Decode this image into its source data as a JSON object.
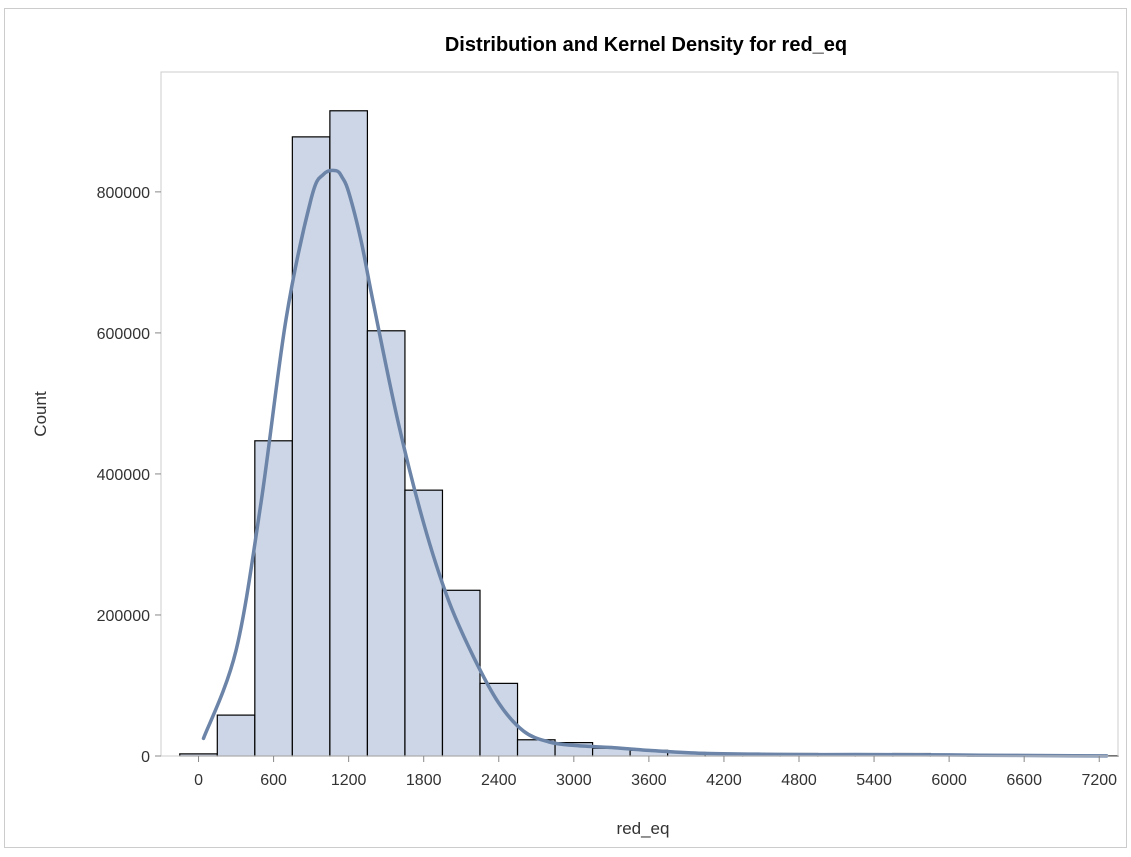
{
  "chart_data": {
    "type": "bar",
    "title": "Distribution and Kernel Density for red_eq",
    "xlabel": "red_eq",
    "ylabel": "Count",
    "xlim": [
      -300,
      7350
    ],
    "ylim": [
      0,
      970000
    ],
    "x_ticks": [
      0,
      600,
      1200,
      1800,
      2400,
      3000,
      3600,
      4200,
      4800,
      5400,
      6000,
      6600,
      7200
    ],
    "y_ticks": [
      0,
      200000,
      400000,
      600000,
      800000
    ],
    "bin_width": 300,
    "bins": [
      {
        "x0": -150,
        "x1": 150,
        "value": 3000
      },
      {
        "x0": 150,
        "x1": 450,
        "value": 58000
      },
      {
        "x0": 450,
        "x1": 750,
        "value": 447000
      },
      {
        "x0": 750,
        "x1": 1050,
        "value": 878000
      },
      {
        "x0": 1050,
        "x1": 1350,
        "value": 915000
      },
      {
        "x0": 1350,
        "x1": 1650,
        "value": 603000
      },
      {
        "x0": 1650,
        "x1": 1950,
        "value": 377000
      },
      {
        "x0": 1950,
        "x1": 2250,
        "value": 235000
      },
      {
        "x0": 2250,
        "x1": 2550,
        "value": 103000
      },
      {
        "x0": 2550,
        "x1": 2850,
        "value": 23000
      },
      {
        "x0": 2850,
        "x1": 3150,
        "value": 19000
      },
      {
        "x0": 3150,
        "x1": 3450,
        "value": 11000
      },
      {
        "x0": 3450,
        "x1": 3750,
        "value": 8000
      },
      {
        "x0": 3750,
        "x1": 4050,
        "value": 5000
      },
      {
        "x0": 4050,
        "x1": 4350,
        "value": 3000
      },
      {
        "x0": 4350,
        "x1": 4650,
        "value": 2500
      },
      {
        "x0": 4650,
        "x1": 4950,
        "value": 3500
      },
      {
        "x0": 4950,
        "x1": 5250,
        "value": 3000
      },
      {
        "x0": 5250,
        "x1": 5550,
        "value": 2000
      },
      {
        "x0": 5550,
        "x1": 5850,
        "value": 3500
      },
      {
        "x0": 5850,
        "x1": 6150,
        "value": 1500
      },
      {
        "x0": 6150,
        "x1": 6450,
        "value": 500
      },
      {
        "x0": 6450,
        "x1": 6750,
        "value": 500
      },
      {
        "x0": 6750,
        "x1": 7050,
        "value": 500
      },
      {
        "x0": 7050,
        "x1": 7350,
        "value": 500
      }
    ],
    "kernel_density": {
      "x": [
        40,
        300,
        500,
        700,
        900,
        1000,
        1100,
        1150,
        1200,
        1300,
        1400,
        1600,
        1800,
        2000,
        2200,
        2400,
        2600,
        2800,
        3000,
        3300,
        3600,
        4000,
        4500,
        5000,
        5500,
        6000,
        6500,
        7000,
        7260
      ],
      "y": [
        25000,
        150000,
        360000,
        620000,
        790000,
        825000,
        830000,
        820000,
        800000,
        730000,
        640000,
        470000,
        330000,
        220000,
        140000,
        75000,
        35000,
        20000,
        15000,
        12000,
        8000,
        4000,
        2500,
        2000,
        2000,
        1500,
        800,
        400,
        200
      ]
    },
    "grid": false,
    "legend": "none",
    "colors": {
      "bar_fill": "#ccd6e6",
      "bar_stroke": "#000000",
      "density_line": "#6b84a8",
      "axis": "#888888",
      "frame": "#cccccc"
    }
  }
}
